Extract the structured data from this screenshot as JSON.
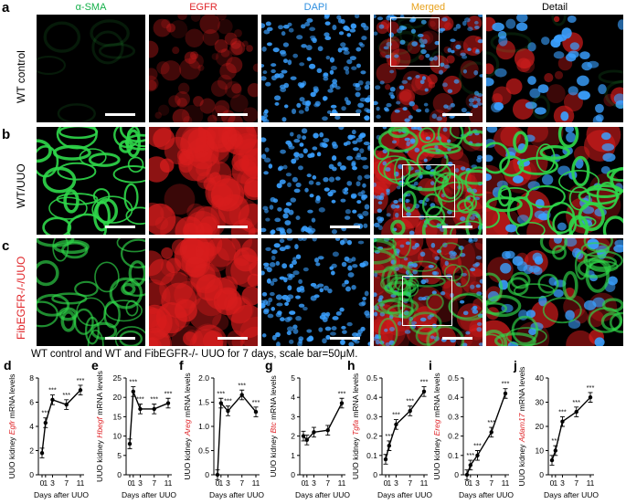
{
  "columns": [
    {
      "label": "α-SMA",
      "color": "#15b04a"
    },
    {
      "label": "EGFR",
      "color": "#e0262a"
    },
    {
      "label": "DAPI",
      "color": "#2f8fe0"
    },
    {
      "label": "Merged",
      "color": "#e8a21c"
    },
    {
      "label": "Detail",
      "color": "#000000"
    }
  ],
  "rows": [
    {
      "letter": "a",
      "label": "WT control",
      "label_color": "#000000"
    },
    {
      "letter": "b",
      "label": "WT/UUO",
      "label_color": "#000000"
    },
    {
      "letter": "c",
      "label": "FibEGFR-/-/UUO",
      "label_color": "#e0262a"
    }
  ],
  "caption": "WT control and WT and FibEGFR-/- UUO for 7 days, scale bar=50μM.",
  "chart_data": [
    {
      "type": "line",
      "panel": "d",
      "gene": "Egfr",
      "ylabel_prefix": "UUO kidney ",
      "ylabel_suffix": " mRNA levels",
      "xlabel": "Days after UUO",
      "x": [
        0,
        1,
        3,
        7,
        11
      ],
      "yticks": [
        "0",
        "2",
        "4",
        "6",
        "8"
      ],
      "ylim": [
        0,
        8
      ],
      "values": [
        1.8,
        4.3,
        6.2,
        5.8,
        7.0
      ],
      "significance": [
        "",
        "***",
        "***",
        "***",
        "***"
      ]
    },
    {
      "type": "line",
      "panel": "e",
      "gene": "Hbegf",
      "ylabel_prefix": "UUO kidney ",
      "ylabel_suffix": " mRNA levels",
      "xlabel": "Days after UUO",
      "x": [
        0,
        1,
        3,
        7,
        11
      ],
      "yticks": [
        "0",
        "5",
        "10",
        "15",
        "20",
        "25"
      ],
      "ylim": [
        0,
        25
      ],
      "values": [
        8,
        21.5,
        17,
        17,
        18.5
      ],
      "significance": [
        "",
        "***",
        "***",
        "***",
        "***"
      ]
    },
    {
      "type": "line",
      "panel": "f",
      "gene": "Areg",
      "ylabel_prefix": "UUO kidney ",
      "ylabel_suffix": " mRNA levels",
      "xlabel": "Days after UUO",
      "x": [
        0,
        1,
        3,
        7,
        11
      ],
      "yticks": [
        "0",
        "0.5",
        "1.0",
        "1.5",
        "2.0"
      ],
      "ylim": [
        0,
        2
      ],
      "values": [
        0,
        1.48,
        1.32,
        1.65,
        1.3
      ],
      "significance": [
        "",
        "***",
        "***",
        "***",
        "***"
      ]
    },
    {
      "type": "line",
      "panel": "g",
      "gene": "Btc",
      "ylabel_prefix": "UUO kidney ",
      "ylabel_suffix": " mRNA levels",
      "xlabel": "Days after UUO",
      "x": [
        0,
        1,
        3,
        7,
        11
      ],
      "yticks": [
        "0",
        "1",
        "2",
        "3",
        "4",
        "5"
      ],
      "ylim": [
        0,
        5
      ],
      "values": [
        2.0,
        1.8,
        2.2,
        2.3,
        3.7
      ],
      "significance": [
        "",
        "",
        "",
        "",
        "***"
      ]
    },
    {
      "type": "line",
      "panel": "h",
      "gene": "Tgfa",
      "ylabel_prefix": "UUO kidney ",
      "ylabel_suffix": " mRNA levels",
      "xlabel": "Days after UUO",
      "x": [
        0,
        1,
        3,
        7,
        11
      ],
      "yticks": [
        "0",
        "0.1",
        "0.2",
        "0.3",
        "0.4",
        "0.5"
      ],
      "ylim": [
        0,
        0.5
      ],
      "values": [
        0.08,
        0.15,
        0.26,
        0.33,
        0.43
      ],
      "significance": [
        "",
        "***",
        "***",
        "***",
        "***"
      ]
    },
    {
      "type": "line",
      "panel": "i",
      "gene": "Ereg",
      "ylabel_prefix": "UUO kidney ",
      "ylabel_suffix": " mRNA levels",
      "xlabel": "Days after UUO",
      "x": [
        0,
        1,
        3,
        7,
        11
      ],
      "yticks": [
        "0",
        "0.1",
        "0.2",
        "0.3",
        "0.4",
        "0.5"
      ],
      "ylim": [
        0,
        0.5
      ],
      "values": [
        0,
        0.05,
        0.1,
        0.22,
        0.42
      ],
      "significance": [
        "",
        "***",
        "***",
        "***",
        "***"
      ]
    },
    {
      "type": "line",
      "panel": "j",
      "gene": "Adam17",
      "ylabel_prefix": "UUO kidney ",
      "ylabel_suffix": " mRNA levels",
      "xlabel": "Days after UUO",
      "x": [
        0,
        1,
        3,
        7,
        11
      ],
      "yticks": [
        "0",
        "10",
        "20",
        "30",
        "40"
      ],
      "ylim": [
        0,
        40
      ],
      "values": [
        6,
        10,
        22,
        26,
        32
      ],
      "significance": [
        "",
        "***",
        "***",
        "***",
        "***"
      ]
    }
  ]
}
